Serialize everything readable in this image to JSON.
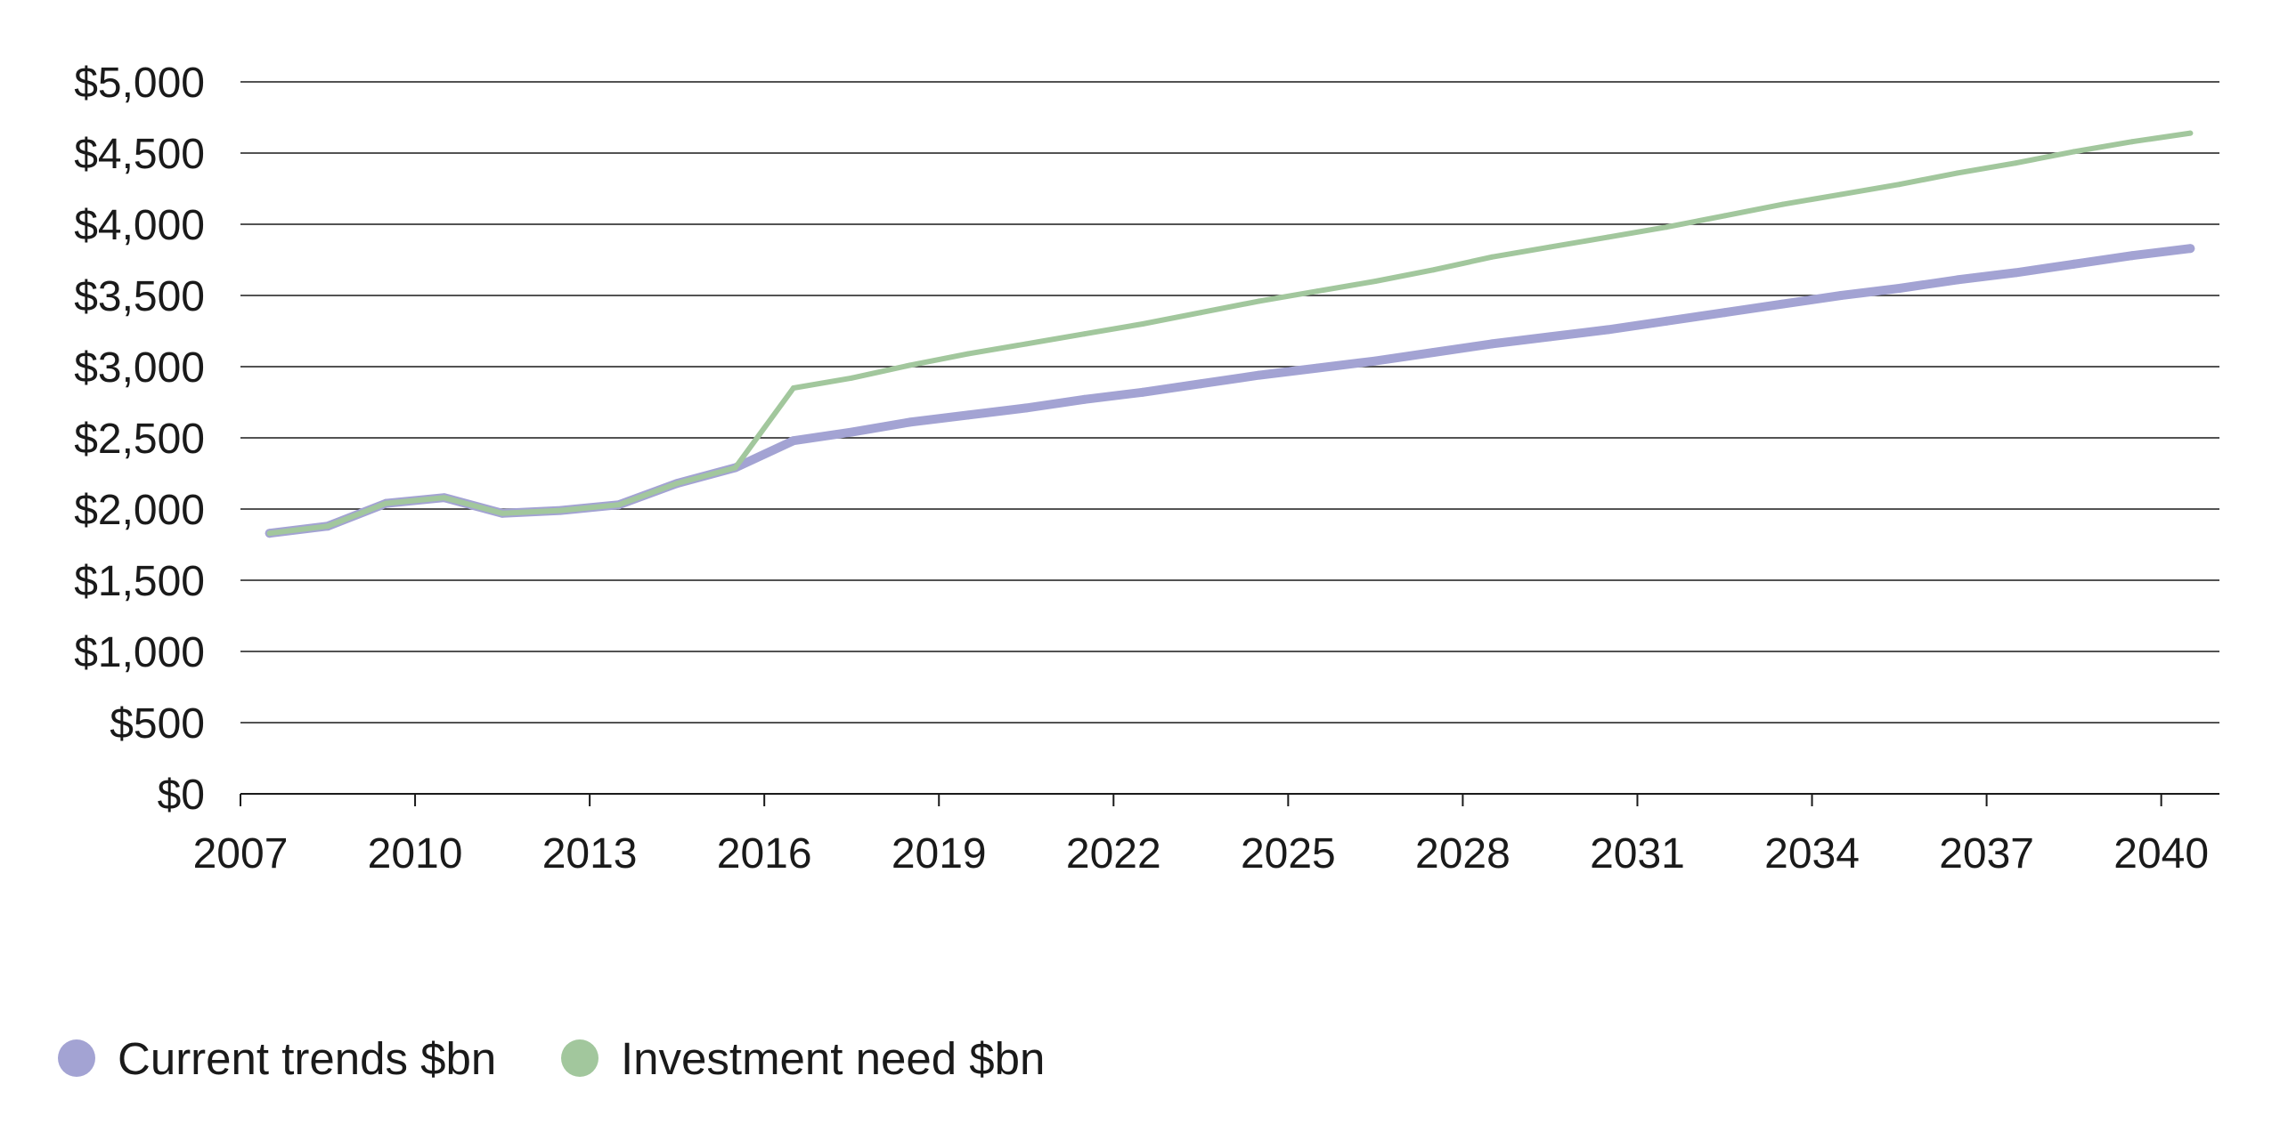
{
  "chart_data": {
    "type": "line",
    "title": "",
    "xlabel": "",
    "ylabel": "",
    "xlim": [
      2007,
      2041
    ],
    "ylim": [
      0,
      5000
    ],
    "y_ticks": [
      0,
      500,
      1000,
      1500,
      2000,
      2500,
      3000,
      3500,
      4000,
      4500,
      5000
    ],
    "y_tick_labels": [
      "$0",
      "$500",
      "$1,000",
      "$1,500",
      "$2,000",
      "$2,500",
      "$3,000",
      "$3,500",
      "$4,000",
      "$4,500",
      "$5,000"
    ],
    "x_ticks": [
      2007,
      2010,
      2013,
      2016,
      2019,
      2022,
      2025,
      2028,
      2031,
      2034,
      2037,
      2040
    ],
    "x_tick_labels": [
      "2007",
      "2010",
      "2013",
      "2016",
      "2019",
      "2022",
      "2025",
      "2028",
      "2031",
      "2034",
      "2037",
      "2040"
    ],
    "grid": true,
    "legend_position": "bottom-left",
    "x": [
      2007.5,
      2008.5,
      2009.5,
      2010.5,
      2011.5,
      2012.5,
      2013.5,
      2014.5,
      2015.5,
      2016.5,
      2017.5,
      2018.5,
      2019.5,
      2020.5,
      2021.5,
      2022.5,
      2023.5,
      2024.5,
      2025.5,
      2026.5,
      2027.5,
      2028.5,
      2029.5,
      2030.5,
      2031.5,
      2032.5,
      2033.5,
      2034.5,
      2035.5,
      2036.5,
      2037.5,
      2038.5,
      2039.5,
      2040.5
    ],
    "series": [
      {
        "name": "Current trends $bn",
        "color": "#a3a3d3",
        "values": [
          1830,
          1880,
          2040,
          2080,
          1970,
          1990,
          2030,
          2180,
          2290,
          2480,
          2540,
          2610,
          2660,
          2710,
          2770,
          2820,
          2880,
          2940,
          2990,
          3040,
          3100,
          3160,
          3210,
          3260,
          3320,
          3380,
          3440,
          3500,
          3550,
          3610,
          3660,
          3720,
          3780,
          3830
        ]
      },
      {
        "name": "Investment need $bn",
        "color": "#a2c79d",
        "values": [
          1830,
          1880,
          2040,
          2080,
          1970,
          1990,
          2030,
          2180,
          2290,
          2850,
          2920,
          3010,
          3090,
          3160,
          3230,
          3300,
          3380,
          3460,
          3530,
          3600,
          3680,
          3770,
          3840,
          3910,
          3980,
          4060,
          4140,
          4210,
          4280,
          4360,
          4430,
          4510,
          4580,
          4640
        ]
      }
    ]
  }
}
